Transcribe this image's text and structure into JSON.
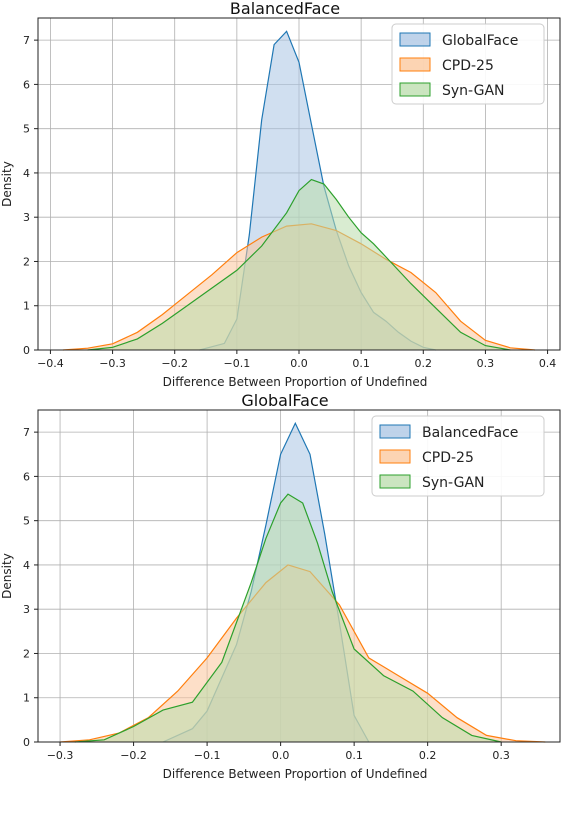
{
  "chart_data": [
    {
      "type": "area",
      "title": "BalancedFace",
      "xlabel": "Difference Between Proportion of Undefined",
      "ylabel": "Density",
      "xlim": [
        -0.42,
        0.42
      ],
      "ylim": [
        0,
        7.5
      ],
      "xticks": [
        -0.4,
        -0.3,
        -0.2,
        -0.1,
        0.0,
        0.1,
        0.2,
        0.3,
        0.4
      ],
      "xtick_labels": [
        "−0.4",
        "−0.3",
        "−0.2",
        "−0.1",
        "0.0",
        "0.1",
        "0.2",
        "0.3",
        "0.4"
      ],
      "yticks": [
        0,
        1,
        2,
        3,
        4,
        5,
        6,
        7
      ],
      "ytick_labels": [
        "0",
        "1",
        "2",
        "3",
        "4",
        "5",
        "6",
        "7"
      ],
      "grid": true,
      "legend_position": "top-right",
      "series": [
        {
          "name": "GlobalFace",
          "fill": "#a9c4e3",
          "line": "#1f77b4",
          "x": [
            -0.16,
            -0.12,
            -0.1,
            -0.08,
            -0.06,
            -0.04,
            -0.02,
            0.0,
            0.02,
            0.04,
            0.06,
            0.08,
            0.1,
            0.12,
            0.14,
            0.16,
            0.18,
            0.2,
            0.22
          ],
          "y": [
            0.0,
            0.15,
            0.7,
            2.6,
            5.2,
            6.9,
            7.2,
            6.5,
            5.1,
            3.7,
            2.7,
            1.9,
            1.3,
            0.85,
            0.65,
            0.4,
            0.2,
            0.06,
            0.0
          ]
        },
        {
          "name": "CPD-25",
          "fill": "#fbc59a",
          "line": "#ff7f0e",
          "x": [
            -0.38,
            -0.34,
            -0.3,
            -0.26,
            -0.22,
            -0.18,
            -0.14,
            -0.1,
            -0.06,
            -0.02,
            0.02,
            0.06,
            0.1,
            0.14,
            0.18,
            0.22,
            0.26,
            0.3,
            0.34,
            0.38
          ],
          "y": [
            0.0,
            0.04,
            0.14,
            0.4,
            0.8,
            1.25,
            1.7,
            2.2,
            2.55,
            2.8,
            2.85,
            2.7,
            2.4,
            2.05,
            1.75,
            1.3,
            0.65,
            0.22,
            0.05,
            0.0
          ]
        },
        {
          "name": "Syn-GAN",
          "fill": "#b9dcab",
          "line": "#2ca02c",
          "x": [
            -0.34,
            -0.3,
            -0.26,
            -0.22,
            -0.18,
            -0.14,
            -0.1,
            -0.06,
            -0.02,
            0.0,
            0.02,
            0.04,
            0.06,
            0.08,
            0.1,
            0.12,
            0.14,
            0.18,
            0.22,
            0.26,
            0.3,
            0.34
          ],
          "y": [
            0.0,
            0.06,
            0.25,
            0.6,
            1.0,
            1.4,
            1.8,
            2.35,
            3.1,
            3.6,
            3.85,
            3.75,
            3.4,
            3.0,
            2.65,
            2.4,
            2.1,
            1.5,
            0.95,
            0.4,
            0.1,
            0.0
          ]
        }
      ]
    },
    {
      "type": "area",
      "title": "GlobalFace",
      "xlabel": "Difference Between Proportion of Undefined",
      "ylabel": "Density",
      "xlim": [
        -0.33,
        0.38
      ],
      "ylim": [
        0,
        7.5
      ],
      "xticks": [
        -0.3,
        -0.2,
        -0.1,
        0.0,
        0.1,
        0.2,
        0.3
      ],
      "xtick_labels": [
        "−0.3",
        "−0.2",
        "−0.1",
        "0.0",
        "0.1",
        "0.2",
        "0.3"
      ],
      "yticks": [
        0,
        1,
        2,
        3,
        4,
        5,
        6,
        7
      ],
      "ytick_labels": [
        "0",
        "1",
        "2",
        "3",
        "4",
        "5",
        "6",
        "7"
      ],
      "grid": true,
      "legend_position": "top-right",
      "series": [
        {
          "name": "BalancedFace",
          "fill": "#a9c4e3",
          "line": "#1f77b4",
          "x": [
            -0.16,
            -0.12,
            -0.1,
            -0.06,
            -0.04,
            -0.02,
            0.0,
            0.02,
            0.04,
            0.06,
            0.08,
            0.1,
            0.12
          ],
          "y": [
            0.0,
            0.3,
            0.7,
            2.2,
            3.4,
            4.9,
            6.5,
            7.2,
            6.5,
            4.7,
            2.7,
            0.6,
            0.0
          ]
        },
        {
          "name": "CPD-25",
          "fill": "#fbc59a",
          "line": "#ff7f0e",
          "x": [
            -0.3,
            -0.26,
            -0.22,
            -0.18,
            -0.14,
            -0.1,
            -0.06,
            -0.02,
            0.01,
            0.04,
            0.08,
            0.12,
            0.16,
            0.2,
            0.24,
            0.28,
            0.32,
            0.36
          ],
          "y": [
            0.0,
            0.05,
            0.2,
            0.55,
            1.15,
            1.9,
            2.8,
            3.6,
            4.0,
            3.85,
            3.1,
            1.9,
            1.5,
            1.1,
            0.55,
            0.15,
            0.03,
            0.0
          ]
        },
        {
          "name": "Syn-GAN",
          "fill": "#b9dcab",
          "line": "#2ca02c",
          "x": [
            -0.28,
            -0.24,
            -0.2,
            -0.16,
            -0.12,
            -0.08,
            -0.04,
            -0.02,
            0.0,
            0.01,
            0.03,
            0.05,
            0.07,
            0.1,
            0.14,
            0.18,
            0.22,
            0.26,
            0.3
          ],
          "y": [
            0.0,
            0.05,
            0.35,
            0.72,
            0.9,
            1.8,
            3.6,
            4.6,
            5.4,
            5.6,
            5.4,
            4.5,
            3.4,
            2.1,
            1.5,
            1.15,
            0.55,
            0.15,
            0.0
          ]
        }
      ]
    }
  ]
}
